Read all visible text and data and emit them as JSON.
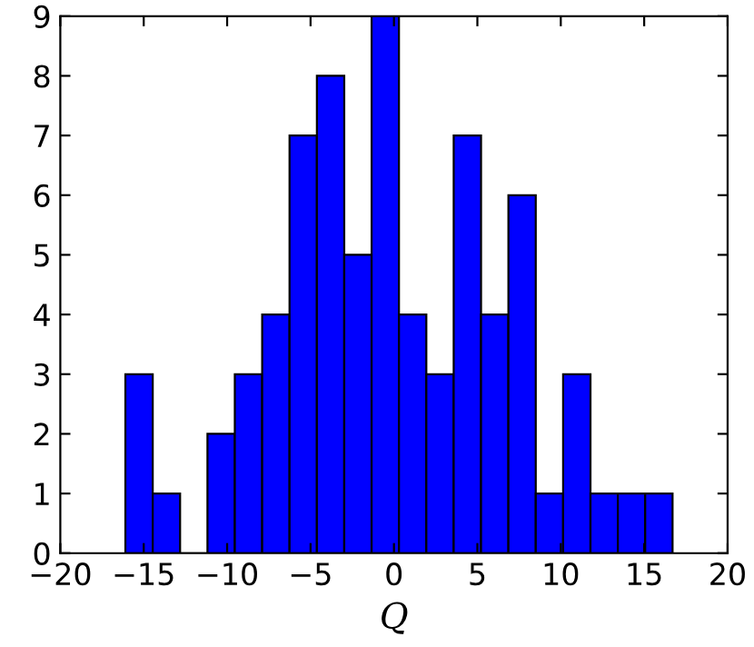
{
  "chart_data": {
    "type": "histogram",
    "xlabel": "Q",
    "bins": [
      -16.1,
      -14.46,
      -12.82,
      -11.18,
      -9.54,
      -7.9,
      -6.26,
      -4.62,
      -2.98,
      -1.34,
      0.3,
      1.94,
      3.58,
      5.22,
      6.86,
      8.5,
      10.14,
      11.78,
      13.42,
      15.06,
      16.7
    ],
    "values": [
      3,
      1,
      0,
      2,
      3,
      4,
      7,
      8,
      5,
      9,
      4,
      3,
      7,
      4,
      6,
      1,
      3,
      1,
      1,
      1
    ],
    "color": "#0000ff",
    "xlim": [
      -20,
      20
    ],
    "xticks": [
      {
        "value": -20,
        "label": "−20"
      },
      {
        "value": -15,
        "label": "−15"
      },
      {
        "value": -10,
        "label": "−10"
      },
      {
        "value": -5,
        "label": "−5"
      },
      0,
      5,
      10,
      15,
      20
    ],
    "ylim": [
      0,
      9
    ],
    "yticks": [
      0,
      1,
      2,
      3,
      4,
      5,
      6,
      7,
      8,
      9
    ],
    "grid": false
  }
}
